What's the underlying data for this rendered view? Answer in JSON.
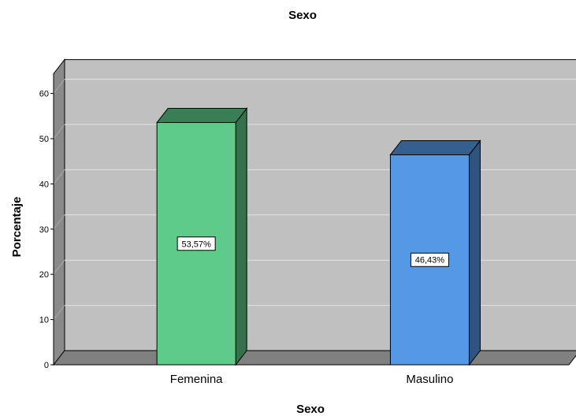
{
  "chart_data": {
    "type": "bar",
    "title": "Sexo",
    "xlabel": "Sexo",
    "ylabel": "Porcentaje",
    "categories": [
      "Femenina",
      "Masulino"
    ],
    "values": [
      53.57,
      46.43
    ],
    "data_labels": [
      "53,57%",
      "46,43%"
    ],
    "colors": [
      "#5ecb8a",
      "#5599e6"
    ],
    "ylim": [
      0,
      60
    ],
    "yticks": [
      0,
      10,
      20,
      30,
      40,
      50,
      60
    ],
    "ytick_labels": [
      "0",
      "10",
      "20",
      "30",
      "40",
      "50",
      "60"
    ],
    "grid": true,
    "three_d": true,
    "wall_color": "#c0c0c0",
    "floor_color": "#808080"
  }
}
